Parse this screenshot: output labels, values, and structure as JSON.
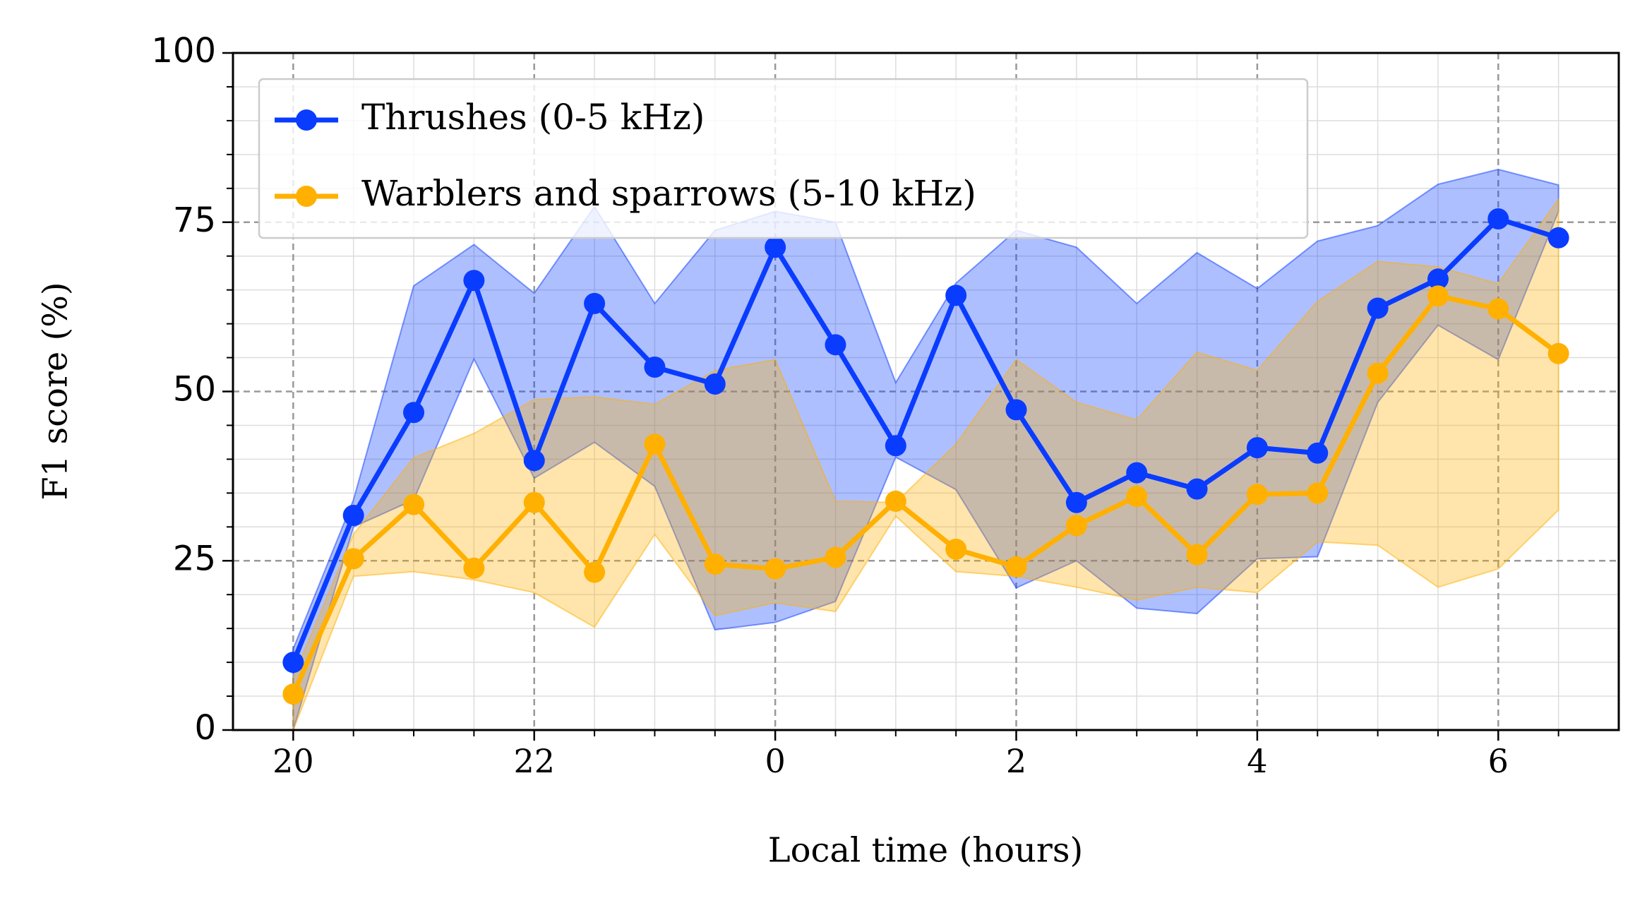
{
  "chart_data": {
    "type": "line",
    "xlabel": "Local time (hours)",
    "ylabel": "F1 score (%)",
    "x": [
      20,
      20.5,
      21,
      21.5,
      22,
      22.5,
      23,
      23.5,
      24,
      24.5,
      25,
      25.5,
      26,
      26.5,
      27,
      27.5,
      28,
      28.5,
      29,
      29.5,
      30,
      30.5
    ],
    "xlim": [
      19.5,
      31
    ],
    "ylim": [
      0,
      100
    ],
    "xticks": [
      20,
      22,
      {
        "value": 24,
        "label": "0"
      },
      {
        "value": 26,
        "label": "2"
      },
      {
        "value": 28,
        "label": "4"
      },
      {
        "value": 30,
        "label": "6"
      }
    ],
    "xminorticks": [
      20.5,
      21,
      21.5,
      22.5,
      23,
      23.5,
      24.5,
      25,
      25.5,
      26.5,
      27,
      27.5,
      28.5,
      29,
      29.5,
      30.5
    ],
    "yticks": [
      0,
      25,
      50,
      75,
      100
    ],
    "yminorticks": [
      5,
      10,
      15,
      20,
      30,
      35,
      40,
      45,
      55,
      60,
      65,
      70,
      80,
      85,
      90,
      95
    ],
    "grid": true,
    "legend": "upper left",
    "series": [
      {
        "name": "Thrushes (0-5 kHz)",
        "color": "#0a3cff",
        "values": [
          10,
          31.7,
          46.9,
          66.4,
          39.8,
          63,
          53.6,
          51.1,
          71.3,
          56.9,
          42,
          64.2,
          47.3,
          33.6,
          38,
          35.6,
          41.7,
          40.9,
          62.3,
          66.6,
          75.5,
          72.7
        ],
        "upper": [
          12,
          34,
          65.6,
          71.7,
          64.5,
          77.3,
          63,
          73.8,
          76.6,
          75,
          51.3,
          66,
          73.8,
          71.3,
          63,
          70.5,
          65.2,
          72.2,
          74.5,
          80.6,
          82.8,
          80.5
        ],
        "lower": [
          0,
          30,
          34,
          54.8,
          37.2,
          42.5,
          36,
          14.8,
          15.9,
          19,
          40.3,
          35.5,
          21,
          25,
          18,
          17.2,
          25.3,
          25.6,
          48.4,
          59.8,
          54.7,
          76.6
        ]
      },
      {
        "name": "Warblers and sparrows (5-10 kHz)",
        "color": "#ffb000",
        "values": [
          5.3,
          25.3,
          33.3,
          23.9,
          33.6,
          23.3,
          42.2,
          24.5,
          23.8,
          25.5,
          33.8,
          26.7,
          24.1,
          30.2,
          34.5,
          25.9,
          34.8,
          35,
          52.7,
          64.1,
          62.2,
          55.6
        ],
        "upper": [
          7.8,
          28.9,
          40.2,
          43.8,
          48.8,
          49.2,
          48.1,
          53.1,
          54.7,
          33.8,
          33.6,
          42.2,
          54.7,
          48.4,
          45.8,
          55.8,
          53.1,
          63.3,
          69.2,
          68.4,
          65.9,
          78.4
        ],
        "lower": [
          0,
          22.7,
          23.4,
          22.2,
          20.3,
          15.2,
          28.9,
          16.9,
          18.8,
          17.5,
          31.6,
          23.4,
          22.7,
          21.1,
          19.2,
          21.1,
          20.3,
          27.8,
          27.3,
          21.1,
          23.8,
          32.5
        ]
      }
    ]
  }
}
